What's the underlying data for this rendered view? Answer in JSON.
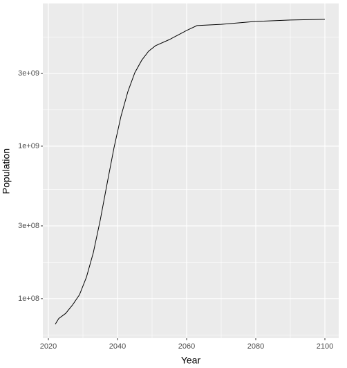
{
  "chart_data": {
    "type": "line",
    "x_label": "Year",
    "y_label": "Population",
    "x": [
      2022,
      2023,
      2025,
      2027,
      2029,
      2031,
      2033,
      2035,
      2037,
      2039,
      2041,
      2043,
      2045,
      2047,
      2049,
      2051,
      2055,
      2060,
      2063,
      2070,
      2080,
      2090,
      2100
    ],
    "series": [
      {
        "color": "#000000",
        "values": [
          68000000,
          74000000,
          80000000,
          91000000,
          106000000,
          138000000,
          200000000,
          327000000,
          570000000,
          980000000,
          1570000000,
          2280000000,
          3030000000,
          3660000000,
          4200000000,
          4560000000,
          5000000000,
          5740000000,
          6180000000,
          6300000000,
          6580000000,
          6720000000,
          6790000000
        ]
      }
    ],
    "xlim": [
      2018.4,
      2104
    ],
    "xticks": [
      2020,
      2040,
      2060,
      2080,
      2100
    ],
    "ylim": [
      55000000,
      8630000000
    ],
    "log_y": true,
    "yticks": [
      {
        "value": 100000000,
        "label": "1e+08"
      },
      {
        "value": 300000000,
        "label": "3e+08"
      },
      {
        "value": 1000000000,
        "label": "1e+09"
      },
      {
        "value": 3000000000,
        "label": "3e+09"
      }
    ],
    "grid": true
  }
}
